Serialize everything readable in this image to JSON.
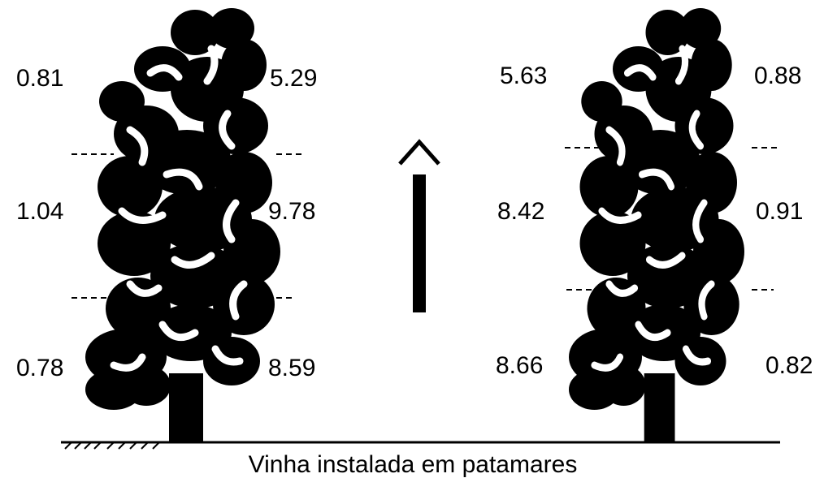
{
  "left_vine": {
    "left_labels": [
      0.81,
      1.04,
      0.78
    ],
    "right_labels": [
      5.29,
      9.78,
      8.59
    ]
  },
  "right_vine": {
    "left_labels": [
      5.63,
      8.42,
      8.66
    ],
    "right_labels": [
      0.88,
      0.91,
      0.82
    ]
  },
  "caption": "Vinha instalada em patamares"
}
